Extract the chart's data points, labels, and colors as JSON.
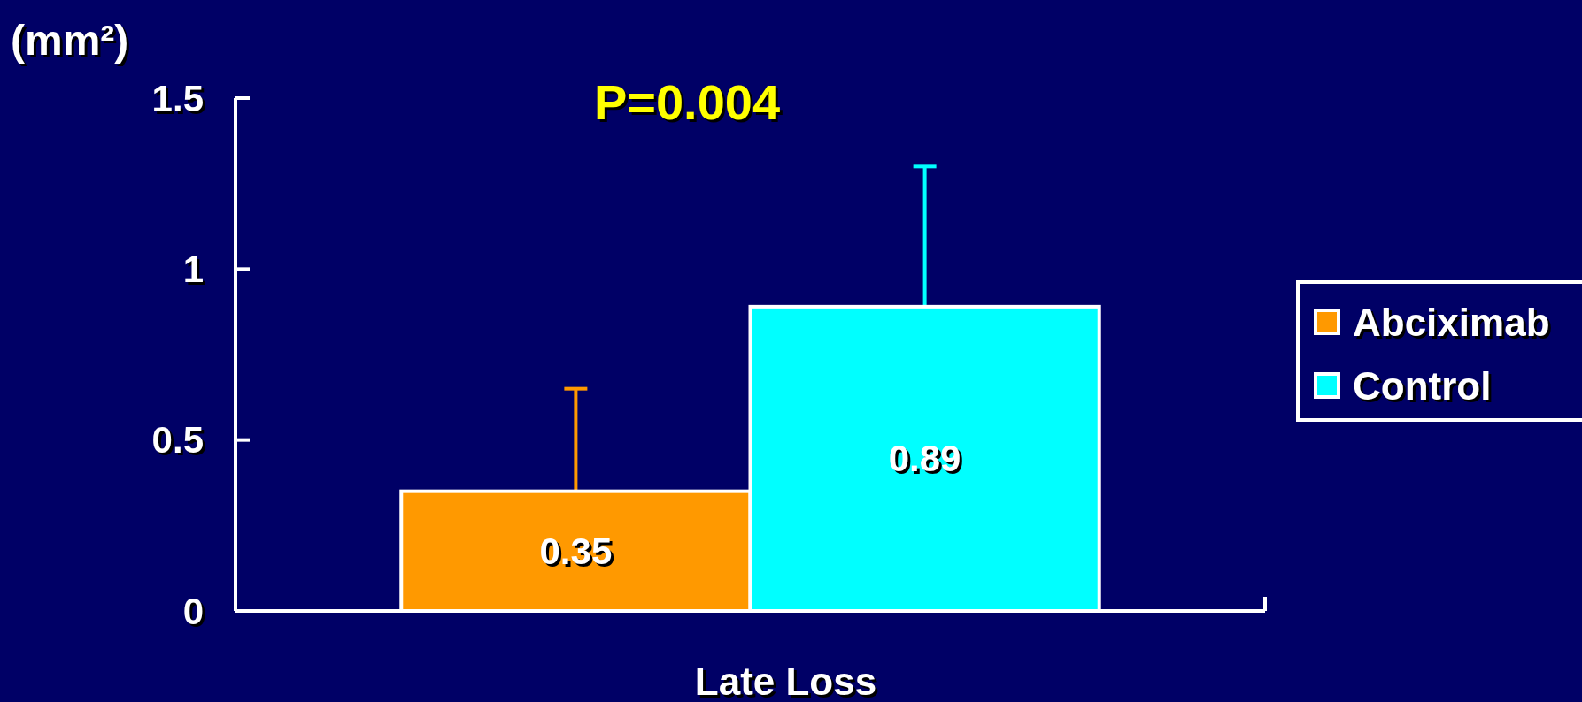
{
  "chart_data": {
    "type": "bar",
    "categories": [
      "Late Loss"
    ],
    "ylabel": "(mm²)",
    "series": [
      {
        "name": "Abciximab",
        "color": "#ff9900",
        "values": [
          0.35
        ],
        "errors": [
          [
            0.35,
            0.65
          ]
        ]
      },
      {
        "name": "Control",
        "color": "#00ffff",
        "values": [
          0.89
        ],
        "errors": [
          [
            0.89,
            1.3
          ]
        ]
      }
    ],
    "ylim": [
      0,
      1.5
    ],
    "yticks": [
      0,
      0.5,
      1,
      1.5
    ],
    "data_labels": true,
    "legend": "right",
    "grid": false,
    "annotations": [
      "P=0.004"
    ]
  }
}
